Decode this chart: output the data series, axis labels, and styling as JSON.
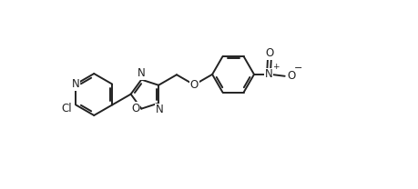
{
  "bg_color": "#ffffff",
  "line_color": "#222222",
  "line_width": 1.4,
  "font_size": 8.5,
  "figsize": [
    4.59,
    2.08
  ],
  "dpi": 100,
  "xlim": [
    -0.3,
    9.0
  ],
  "ylim": [
    -3.2,
    2.2
  ]
}
